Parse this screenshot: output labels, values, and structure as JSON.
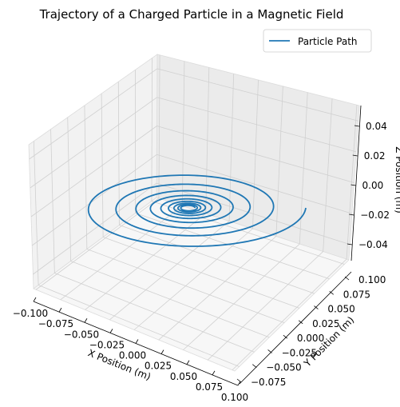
{
  "chart_data": {
    "type": "line",
    "projection": "3d",
    "title": "Trajectory of a Charged Particle in a Magnetic Field",
    "xlabel": "X Position (m)",
    "ylabel": "Y Position (m)",
    "zlabel": "Z Position (m)",
    "xlim": [
      -0.1,
      0.1
    ],
    "ylim": [
      -0.085,
      0.105
    ],
    "zlim": [
      -0.05,
      0.05
    ],
    "x_ticks": [
      "−0.100",
      "−0.075",
      "−0.050",
      "−0.025",
      "0.000",
      "0.025",
      "0.050",
      "0.075",
      "0.100"
    ],
    "y_ticks": [
      "−0.075",
      "−0.050",
      "−0.025",
      "0.000",
      "0.025",
      "0.050",
      "0.075",
      "0.100"
    ],
    "z_ticks": [
      "−0.04",
      "−0.02",
      "0.00",
      "0.02",
      "0.04"
    ],
    "grid": true,
    "legend_position": "top-right",
    "series": [
      {
        "name": "Particle Path",
        "color": "#1f77b4",
        "curve": "inward spiral in the plane z = 0",
        "center": [
          0.0,
          0.0,
          0.0
        ],
        "start_radius": 0.1,
        "turns": 9,
        "z": 0.0
      }
    ]
  }
}
